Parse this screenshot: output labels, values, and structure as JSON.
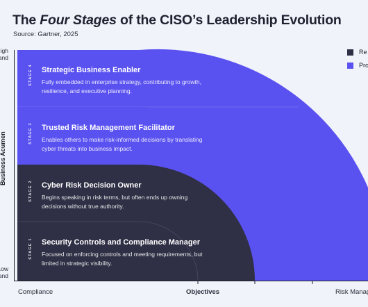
{
  "header": {
    "title_prefix": "The ",
    "title_em": "Four Stages",
    "title_suffix": " of the CISO’s Leadership Evolution",
    "source": "Source: Gartner, 2025"
  },
  "axes": {
    "y_title": "Business Acumen",
    "y_high": "High\nand",
    "y_low": "Low\nand",
    "x_left": "Compliance",
    "x_mid": "Objectives",
    "x_right": "Risk Manag"
  },
  "legend": [
    {
      "label": "Re",
      "color": "#2f2f45"
    },
    {
      "label": "Pro",
      "color": "#5a52f0"
    }
  ],
  "stages": [
    {
      "tag": "STAGE 4",
      "title": "Strategic Business Enabler",
      "desc": "Fully embedded in enterprise strategy, contributing to growth, resilience, and executive planning."
    },
    {
      "tag": "STAGE 3",
      "title": "Trusted Risk Management Facilitator",
      "desc": "Enables others to make risk-informed decisions by translating cyber threats into business impact."
    },
    {
      "tag": "STAGE 2",
      "title": "Cyber Risk Decision Owner",
      "desc": "Begins speaking in risk terms, but often ends up owning decisions without true authority."
    },
    {
      "tag": "STAGE 1",
      "title": "Security Controls and Compliance Manager",
      "desc": "Focused on enforcing controls and meeting requirements, but limited in strategic visibility."
    }
  ],
  "colors": {
    "proactive": "#5a52f0",
    "reactive": "#2f2f45",
    "background": "#f1f3fa"
  }
}
